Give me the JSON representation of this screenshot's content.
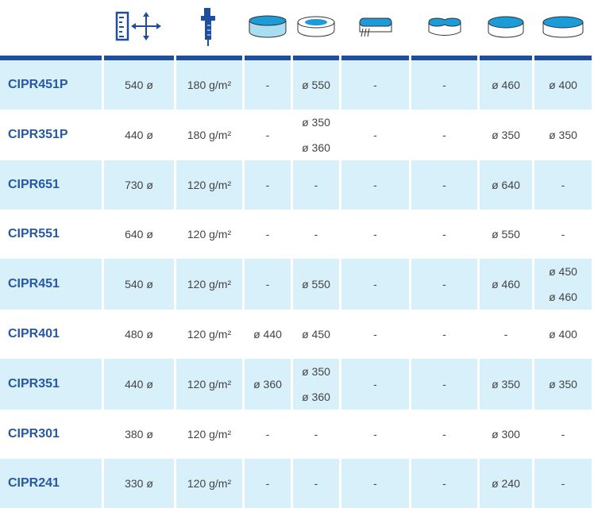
{
  "colors": {
    "header_bar": "#1f4e9c",
    "row_alt": "#d8f0fa",
    "code_text": "#2758a3"
  },
  "header_icons": [
    "ruler-dimensions-icon",
    "caliper-thickness-icon",
    "round-frame-pool-icon",
    "inflatable-pool-icon",
    "oval-steel-pool-icon",
    "figure-eight-pool-icon",
    "round-steel-pool-icon",
    "round-pool-icon"
  ],
  "rows": [
    {
      "code": "CIPR451P",
      "size": "540 ø",
      "weight": "180 g/m²",
      "c": [
        [
          "-"
        ],
        [
          "ø 550"
        ],
        [
          "-"
        ],
        [
          "-"
        ],
        [
          "ø 460"
        ],
        [
          "ø 400"
        ]
      ]
    },
    {
      "code": "CIPR351P",
      "size": "440 ø",
      "weight": "180 g/m²",
      "c": [
        [
          "-"
        ],
        [
          "ø 350",
          "ø 360"
        ],
        [
          "-"
        ],
        [
          "-"
        ],
        [
          "ø 350"
        ],
        [
          "ø 350"
        ]
      ]
    },
    {
      "code": "CIPR651",
      "size": "730 ø",
      "weight": "120 g/m²",
      "c": [
        [
          "-"
        ],
        [
          "-"
        ],
        [
          "-"
        ],
        [
          "-"
        ],
        [
          "ø 640"
        ],
        [
          "-"
        ]
      ]
    },
    {
      "code": "CIPR551",
      "size": "640 ø",
      "weight": "120 g/m²",
      "c": [
        [
          "-"
        ],
        [
          "-"
        ],
        [
          "-"
        ],
        [
          "-"
        ],
        [
          "ø 550"
        ],
        [
          "-"
        ]
      ]
    },
    {
      "code": "CIPR451",
      "size": "540 ø",
      "weight": "120 g/m²",
      "c": [
        [
          "-"
        ],
        [
          "ø 550"
        ],
        [
          "-"
        ],
        [
          "-"
        ],
        [
          "ø 460"
        ],
        [
          "ø 450",
          "ø 460"
        ]
      ]
    },
    {
      "code": "CIPR401",
      "size": "480 ø",
      "weight": "120 g/m²",
      "c": [
        [
          "ø 440"
        ],
        [
          "ø 450"
        ],
        [
          "-"
        ],
        [
          "-"
        ],
        [
          "-"
        ],
        [
          "ø 400"
        ]
      ]
    },
    {
      "code": "CIPR351",
      "size": "440 ø",
      "weight": "120 g/m²",
      "c": [
        [
          "ø 360"
        ],
        [
          "ø 350",
          "ø 360"
        ],
        [
          "-"
        ],
        [
          "-"
        ],
        [
          "ø 350"
        ],
        [
          "ø 350"
        ]
      ]
    },
    {
      "code": "CIPR301",
      "size": "380 ø",
      "weight": "120 g/m²",
      "c": [
        [
          "-"
        ],
        [
          "-"
        ],
        [
          "-"
        ],
        [
          "-"
        ],
        [
          "ø 300"
        ],
        [
          "-"
        ]
      ]
    },
    {
      "code": "CIPR241",
      "size": "330 ø",
      "weight": "120 g/m²",
      "c": [
        [
          "-"
        ],
        [
          "-"
        ],
        [
          "-"
        ],
        [
          "-"
        ],
        [
          "ø 240"
        ],
        [
          "-"
        ]
      ]
    }
  ]
}
